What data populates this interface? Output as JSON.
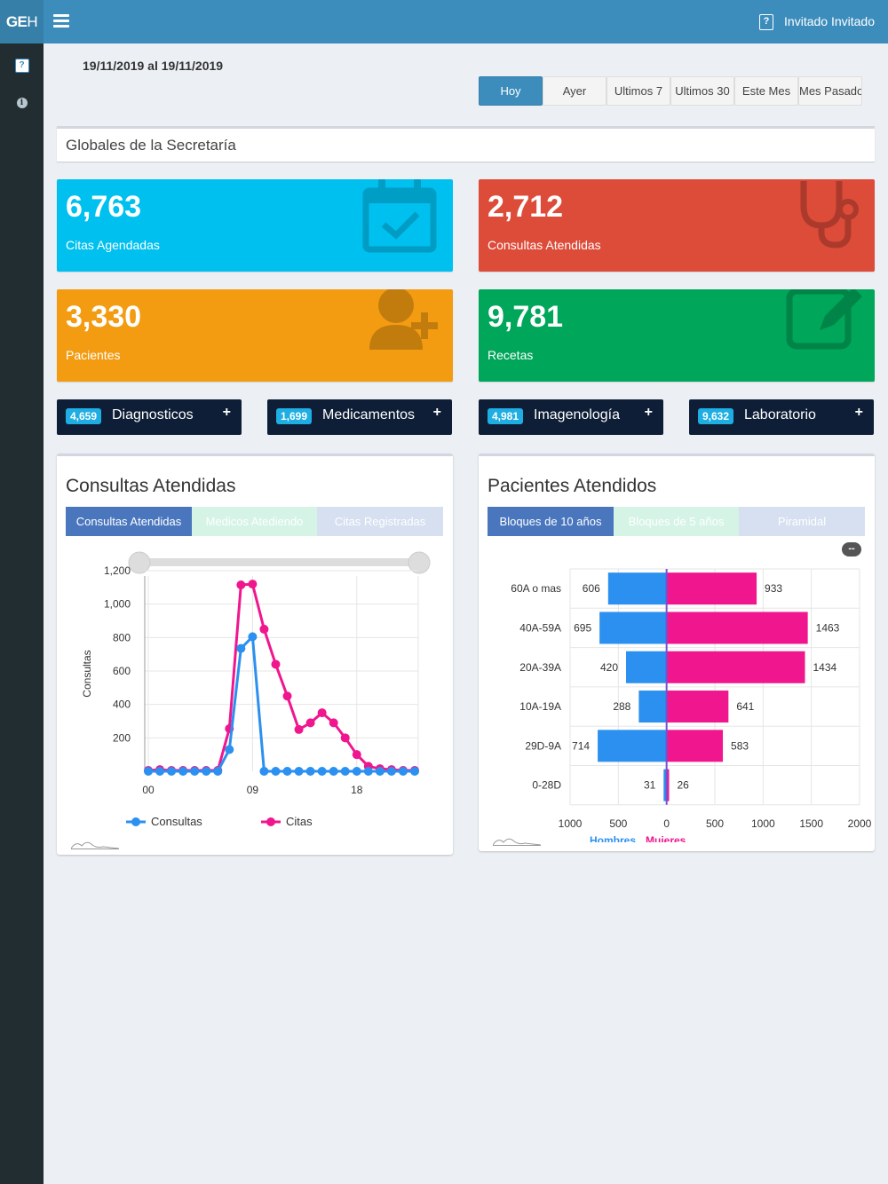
{
  "header": {
    "logo_bold": "GE",
    "logo_thin": "H",
    "user_name": "Invitado Invitado",
    "user_icon": "?"
  },
  "sidebar": {
    "items": [
      {
        "icon": "help-icon",
        "glyph": "?"
      },
      {
        "icon": "info-icon",
        "glyph": "i"
      }
    ]
  },
  "date_range": "19/11/2019 al 19/11/2019",
  "range_buttons": [
    "Hoy",
    "Ayer",
    "Ultimos 7",
    "Ultimos 30",
    "Este Mes",
    "Mes Pasado"
  ],
  "active_range": "Hoy",
  "section_title": "Globales de la Secretaría",
  "stats": [
    {
      "value": "6,763",
      "label": "Citas Agendadas",
      "color": "#00c0ef",
      "icon": "calendar-check-icon"
    },
    {
      "value": "2,712",
      "label": "Consultas Atendidas",
      "color": "#dd4b39",
      "icon": "stethoscope-icon"
    },
    {
      "value": "3,330",
      "label": "Pacientes",
      "color": "#f39c12",
      "icon": "user-plus-icon"
    },
    {
      "value": "9,781",
      "label": "Recetas",
      "color": "#00a65a",
      "icon": "edit-icon"
    }
  ],
  "info_tiles": [
    {
      "count": "4,659",
      "label": "Diagnosticos"
    },
    {
      "count": "1,699",
      "label": "Medicamentos"
    },
    {
      "count": "4,981",
      "label": "Imagenología"
    },
    {
      "count": "9,632",
      "label": "Laboratorio"
    }
  ],
  "consultas_panel": {
    "title": "Consultas Atendidas",
    "tabs": [
      "Consultas Atendidas",
      "Medicos Atediendo",
      "Citas Registradas"
    ],
    "active_tab": 0
  },
  "pacientes_panel": {
    "title": "Pacientes Atendidos",
    "tabs": [
      "Bloques de 10 años",
      "Bloques de 5 años",
      "Piramidal"
    ],
    "active_tab": 0,
    "collapse_label": "--"
  },
  "chart_data": [
    {
      "type": "line",
      "ylabel": "Consultas",
      "ylim": [
        0,
        1200
      ],
      "yticks": [
        "200",
        "400",
        "600",
        "800",
        "1,000",
        "1,200"
      ],
      "xticks": [
        "00",
        "09",
        "18"
      ],
      "x": [
        0,
        1,
        2,
        3,
        4,
        5,
        6,
        7,
        8,
        9,
        10,
        11,
        12,
        13,
        14,
        15,
        16,
        17,
        18,
        19,
        20,
        21,
        22,
        23
      ],
      "series": [
        {
          "name": "Consultas",
          "color": "#2b90ef",
          "values": [
            0,
            0,
            0,
            0,
            0,
            0,
            0,
            130,
            735,
            805,
            0,
            0,
            0,
            0,
            0,
            0,
            0,
            0,
            0,
            0,
            0,
            0,
            0,
            0
          ]
        },
        {
          "name": "Citas",
          "color": "#f0168e",
          "values": [
            5,
            10,
            5,
            5,
            5,
            5,
            5,
            255,
            1115,
            1120,
            850,
            640,
            450,
            250,
            290,
            350,
            290,
            200,
            100,
            30,
            15,
            10,
            5,
            5
          ]
        }
      ],
      "legend_position": "bottom",
      "grid": true
    },
    {
      "type": "bar",
      "orientation": "horizontal-pyramid",
      "categories": [
        "60A o mas",
        "40A-59A",
        "20A-39A",
        "10A-19A",
        "29D-9A",
        "0-28D"
      ],
      "series": [
        {
          "name": "Hombres",
          "color": "#2b90ef",
          "values": [
            606,
            695,
            420,
            288,
            714,
            31
          ]
        },
        {
          "name": "Mujeres",
          "color": "#f0168e",
          "values": [
            933,
            1463,
            1434,
            641,
            583,
            26
          ]
        }
      ],
      "xticks": [
        "1000",
        "500",
        "0",
        "500",
        "1000",
        "1500",
        "2000"
      ],
      "xlim": [
        -1000,
        2000
      ],
      "grid": true
    }
  ]
}
